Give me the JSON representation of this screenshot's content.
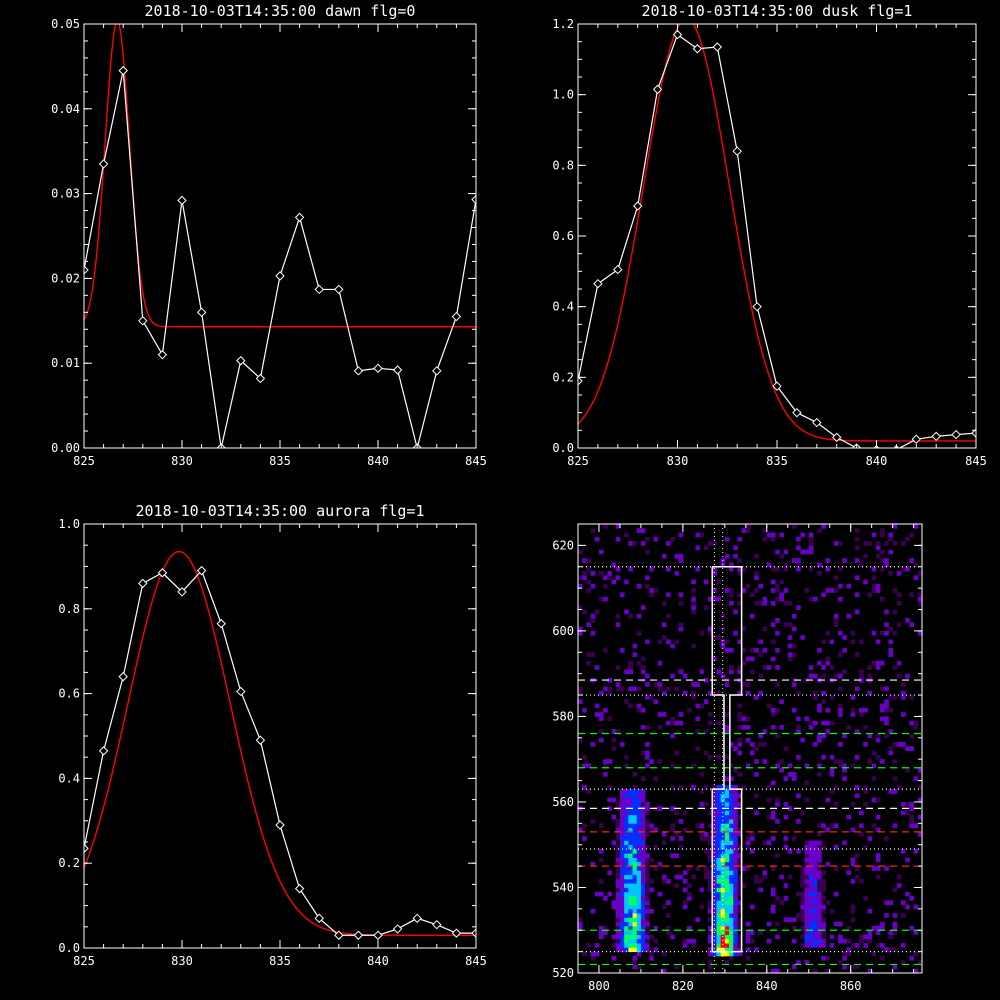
{
  "chart_data": [
    {
      "id": "dawn",
      "type": "line",
      "title": "2018-10-03T14:35:00 dawn flg=0",
      "xlim": [
        825,
        845
      ],
      "ylim": [
        0,
        0.05
      ],
      "xticks": [
        825,
        830,
        835,
        840,
        845
      ],
      "xtick_labels": [
        "825",
        "830",
        "835",
        "840",
        "845"
      ],
      "yticks": [
        0,
        0.01,
        0.02,
        0.03,
        0.04,
        0.05
      ],
      "ytick_labels": [
        "0.00",
        "0.01",
        "0.02",
        "0.03",
        "0.04",
        "0.05"
      ],
      "data": {
        "x": [
          825,
          826,
          827,
          828,
          829,
          830,
          831,
          832,
          833,
          834,
          835,
          836,
          837,
          838,
          839,
          840,
          841,
          842,
          843,
          844,
          845
        ],
        "y": [
          0.021,
          0.0335,
          0.0445,
          0.015,
          0.011,
          0.0292,
          0.016,
          0.0,
          0.0103,
          0.0082,
          0.0203,
          0.0272,
          0.0187,
          0.0187,
          0.0091,
          0.0094,
          0.0092,
          0.0,
          0.0091,
          0.0155,
          0.0293
        ],
        "color": "#ffffff",
        "marker": "diamond"
      },
      "fit": {
        "type": "gaussian",
        "amp": 0.036,
        "center": 826.7,
        "sigma": 0.62,
        "offset": 0.0143,
        "color": "#ff0000"
      }
    },
    {
      "id": "dusk",
      "type": "line",
      "title": "2018-10-03T14:35:00 dusk flg=1",
      "xlim": [
        825,
        845
      ],
      "ylim": [
        0,
        1.2
      ],
      "xticks": [
        825,
        830,
        835,
        840,
        845
      ],
      "xtick_labels": [
        "825",
        "830",
        "835",
        "840",
        "845"
      ],
      "yticks": [
        0,
        0.2,
        0.4,
        0.6,
        0.8,
        1.0,
        1.2
      ],
      "ytick_labels": [
        "0.0",
        "0.2",
        "0.4",
        "0.6",
        "0.8",
        "1.0",
        "1.2"
      ],
      "data": {
        "x": [
          825,
          826,
          827,
          828,
          829,
          830,
          831,
          832,
          833,
          834,
          835,
          836,
          837,
          838,
          839,
          840,
          841,
          842,
          843,
          844,
          845
        ],
        "y": [
          0.19,
          0.465,
          0.505,
          0.685,
          1.015,
          1.17,
          1.13,
          1.135,
          0.84,
          0.4,
          0.175,
          0.1,
          0.072,
          0.03,
          0.0,
          -0.005,
          -0.005,
          0.025,
          0.033,
          0.038,
          0.042
        ],
        "color": "#ffffff",
        "marker": "diamond"
      },
      "fit": {
        "type": "gaussian",
        "amp": 1.195,
        "center": 830.45,
        "sigma": 2.15,
        "offset": 0.02,
        "color": "#ff0000"
      }
    },
    {
      "id": "aurora",
      "type": "line",
      "title": "2018-10-03T14:35:00 aurora flg=1",
      "xlim": [
        825,
        845
      ],
      "ylim": [
        0,
        1.0
      ],
      "xticks": [
        825,
        830,
        835,
        840,
        845
      ],
      "xtick_labels": [
        "825",
        "830",
        "835",
        "840",
        "845"
      ],
      "yticks": [
        0,
        0.2,
        0.4,
        0.6,
        0.8,
        1.0
      ],
      "ytick_labels": [
        "0.0",
        "0.2",
        "0.4",
        "0.6",
        "0.8",
        "1.0"
      ],
      "data": {
        "x": [
          825,
          826,
          827,
          828,
          829,
          830,
          831,
          832,
          833,
          834,
          835,
          836,
          837,
          838,
          839,
          840,
          841,
          842,
          843,
          844,
          845
        ],
        "y": [
          0.235,
          0.465,
          0.64,
          0.86,
          0.885,
          0.84,
          0.89,
          0.765,
          0.605,
          0.49,
          0.29,
          0.14,
          0.07,
          0.03,
          0.03,
          0.03,
          0.045,
          0.07,
          0.055,
          0.035,
          0.035
        ],
        "color": "#ffffff",
        "marker": "diamond"
      },
      "fit": {
        "type": "gaussian",
        "amp": 0.905,
        "center": 829.85,
        "sigma": 2.6,
        "offset": 0.03,
        "color": "#ff0000"
      }
    },
    {
      "id": "image",
      "type": "heatmap",
      "title": "",
      "xlim": [
        795,
        877
      ],
      "ylim": [
        520,
        625
      ],
      "xticks": [
        800,
        820,
        840,
        860
      ],
      "xtick_labels": [
        "800",
        "820",
        "840",
        "860"
      ],
      "yticks": [
        520,
        540,
        560,
        580,
        600,
        620
      ],
      "ytick_labels": [
        "520",
        "540",
        "560",
        "580",
        "600",
        "620"
      ],
      "bands": [
        {
          "x_center": 808,
          "x_width": 3.2,
          "y_from": 525,
          "y_to": 562,
          "peak": 0.8
        },
        {
          "x_center": 830,
          "x_width": 2.8,
          "y_from": 524,
          "y_to": 563,
          "peak": 1.0
        },
        {
          "x_center": 851,
          "x_width": 3.0,
          "y_from": 526,
          "y_to": 550,
          "peak": 0.35
        }
      ],
      "colors": {
        "low": "#3a0050",
        "mid1": "#6a00c8",
        "mid2": "#0030ff",
        "mid3": "#00c8ff",
        "mid4": "#00ff60",
        "high": "#ffff00",
        "top": "#ff0000"
      },
      "overlays": {
        "white_dashed_y": [
          588.5,
          558.5
        ],
        "green_dashed_y": [
          576,
          568,
          530,
          522
        ],
        "red_dashed_y": [
          553,
          545
        ],
        "dotted_y": [
          615,
          585,
          563,
          549,
          525
        ],
        "dotted_x": [
          827.5,
          829.5
        ],
        "box_outline": [
          [
            827,
            615
          ],
          [
            834,
            615
          ],
          [
            834,
            585
          ],
          [
            831.2,
            585
          ],
          [
            831.2,
            563
          ],
          [
            834,
            563
          ],
          [
            834,
            525
          ],
          [
            827,
            525
          ],
          [
            827,
            563
          ],
          [
            829.8,
            563
          ],
          [
            829.8,
            585
          ],
          [
            827,
            585
          ],
          [
            827,
            615
          ]
        ],
        "colors": {
          "white": "#ffffff",
          "green": "#00ff00",
          "red": "#ff2020",
          "dotted": "#ffffff"
        }
      }
    }
  ]
}
